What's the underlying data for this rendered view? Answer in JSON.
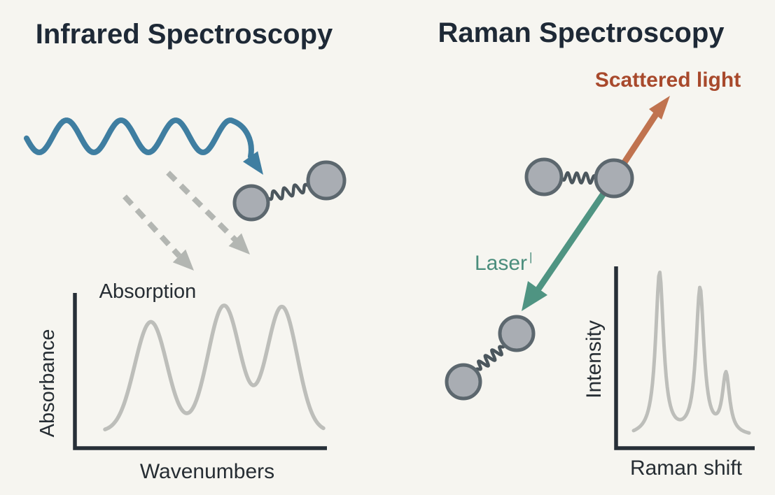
{
  "canvas": {
    "background": "#f6f5f0"
  },
  "left_panel": {
    "title": "Infrared Spectroscopy",
    "ir_beam_color": "#3f7ea1",
    "absorbed_arrows_color": "#b3b6b2"
  },
  "right_panel": {
    "title": "Raman Spectroscopy",
    "scattered_label": "Scattered light",
    "scattered_text_color": "#a8492c",
    "scattered_arrow_color": "#c0734f",
    "laser_label": "Laser",
    "laser_sup": "|",
    "laser_text_color": "#4a8d7c",
    "laser_arrow_color": "#4f9482"
  },
  "molecule": {
    "fill": "#a9adb3",
    "stroke": "#5c676e",
    "spring_color": "#4b565d"
  },
  "style": {
    "title_color": "#1e2936",
    "label_color": "#262d33",
    "axis_color": "#272f37",
    "curve_color": "#bdbeba"
  },
  "chart_data": [
    {
      "id": "ir_spectrum",
      "type": "line",
      "title": "Absorption",
      "xlabel": "Wavenumbers",
      "ylabel": "Absorbance",
      "shape": "gaussian",
      "grid": false,
      "legend": false,
      "xlim": [
        0,
        1
      ],
      "ylim": [
        0,
        1
      ],
      "peaks": [
        {
          "center": 0.21,
          "height": 0.87,
          "width": 0.074
        },
        {
          "center": 0.545,
          "height": 1.0,
          "width": 0.074
        },
        {
          "center": 0.81,
          "height": 0.99,
          "width": 0.07
        }
      ]
    },
    {
      "id": "raman_spectrum",
      "type": "line",
      "title": "",
      "xlabel": "Raman shift",
      "ylabel": "Intensity",
      "shape": "lorentzian",
      "grid": false,
      "legend": false,
      "xlim": [
        0,
        1
      ],
      "ylim": [
        0,
        1
      ],
      "peaks": [
        {
          "center": 0.225,
          "height": 0.97,
          "width": 0.042
        },
        {
          "center": 0.575,
          "height": 0.87,
          "width": 0.042
        },
        {
          "center": 0.8,
          "height": 0.355,
          "width": 0.038
        }
      ]
    }
  ]
}
